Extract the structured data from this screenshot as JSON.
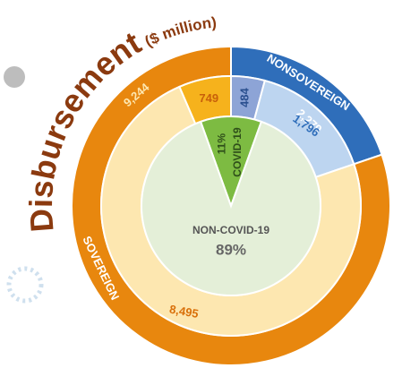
{
  "chart_data": {
    "type": "nested-donut",
    "title": "Disbursement",
    "subtitle": "($ million)",
    "rings": [
      {
        "labels": [
          "NONSOVEREIGN",
          "SOVEREIGN"
        ],
        "values": [
          2279,
          9244
        ],
        "value_labels": [
          "2,279",
          "9,244"
        ],
        "colors": [
          "#2f6eba",
          "#e8870e"
        ]
      },
      {
        "values": [
          484,
          1796,
          8495,
          749
        ],
        "value_labels": [
          "484",
          "1,796",
          "8,495",
          "749"
        ],
        "colors": [
          "#8da4d6",
          "#bdd5f0",
          "#fde7b0",
          "#f6b21c"
        ]
      },
      {
        "labels": [
          "COVID-19",
          "NON-COVID-19"
        ],
        "values": [
          11,
          89
        ],
        "value_labels": [
          "11%",
          "89%"
        ],
        "colors": [
          "#7dbb42",
          "#e4efd8"
        ]
      }
    ]
  }
}
